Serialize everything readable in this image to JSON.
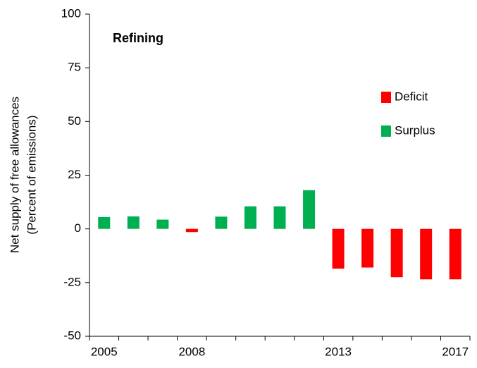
{
  "chart_data": {
    "type": "bar",
    "title": "Refining",
    "ylabel": [
      "Net supply of free allowances",
      "(Percent of emissions)"
    ],
    "categories": [
      "2005",
      null,
      null,
      "2008",
      null,
      null,
      null,
      null,
      "2013",
      null,
      null,
      null,
      "2017"
    ],
    "series": [
      {
        "name": "Deficit",
        "color": "#ff0000",
        "values": [
          null,
          null,
          null,
          -1.5,
          null,
          null,
          null,
          null,
          -18.5,
          -18,
          -22.5,
          -23.5,
          -23.5
        ]
      },
      {
        "name": "Surplus",
        "color": "#00b050",
        "values": [
          5.5,
          5.8,
          4.3,
          null,
          5.7,
          10.5,
          10.5,
          18,
          null,
          null,
          null,
          null,
          null
        ]
      }
    ],
    "ylim": [
      -50,
      100
    ],
    "yticks": [
      -50,
      -25,
      0,
      25,
      50,
      75,
      100
    ],
    "grid": false
  }
}
